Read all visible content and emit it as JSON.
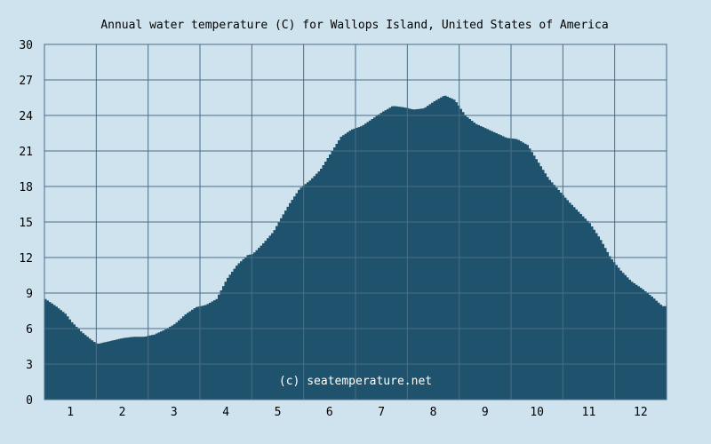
{
  "chart_data": {
    "type": "area",
    "title": "Annual water temperature (C) for Wallops Island, United States of America",
    "xlabel": "",
    "ylabel": "",
    "x_tick_labels": [
      "1",
      "2",
      "3",
      "4",
      "5",
      "6",
      "7",
      "8",
      "9",
      "10",
      "11",
      "12"
    ],
    "y_tick_labels": [
      "0",
      "3",
      "6",
      "9",
      "12",
      "15",
      "18",
      "21",
      "24",
      "27",
      "30"
    ],
    "xlim": [
      0.5,
      12.5
    ],
    "ylim": [
      0,
      30
    ],
    "grid": true,
    "x": [
      0.5,
      0.7,
      0.9,
      1.0,
      1.2,
      1.4,
      1.5,
      1.7,
      1.9,
      2.0,
      2.2,
      2.4,
      2.6,
      2.8,
      3.0,
      3.2,
      3.4,
      3.6,
      3.8,
      4.0,
      4.2,
      4.4,
      4.5,
      4.7,
      4.9,
      5.0,
      5.2,
      5.4,
      5.6,
      5.8,
      6.0,
      6.2,
      6.4,
      6.6,
      6.8,
      7.0,
      7.2,
      7.4,
      7.6,
      7.8,
      8.0,
      8.2,
      8.4,
      8.6,
      8.8,
      9.0,
      9.2,
      9.4,
      9.6,
      9.8,
      10.0,
      10.2,
      10.4,
      10.6,
      10.8,
      11.0,
      11.2,
      11.4,
      11.6,
      11.8,
      12.0,
      12.2,
      12.4,
      12.5
    ],
    "values": [
      8.5,
      7.9,
      7.2,
      6.6,
      5.7,
      5.0,
      4.7,
      4.9,
      5.1,
      5.2,
      5.3,
      5.3,
      5.5,
      5.9,
      6.4,
      7.2,
      7.8,
      8.0,
      8.5,
      10.2,
      11.4,
      12.2,
      12.3,
      13.2,
      14.2,
      15.0,
      16.5,
      17.8,
      18.5,
      19.4,
      20.8,
      22.2,
      22.8,
      23.1,
      23.7,
      24.3,
      24.8,
      24.7,
      24.5,
      24.6,
      25.2,
      25.7,
      25.3,
      24.0,
      23.3,
      22.9,
      22.5,
      22.1,
      22.0,
      21.5,
      20.1,
      18.7,
      17.7,
      16.7,
      15.8,
      14.9,
      13.6,
      12.0,
      10.9,
      10.0,
      9.4,
      8.7,
      7.9,
      7.9
    ],
    "colors": {
      "background": "#cfe3ee",
      "area": "#1f526c",
      "grid": "#4a6d85"
    },
    "watermark": "(c) seatemperature.net"
  }
}
